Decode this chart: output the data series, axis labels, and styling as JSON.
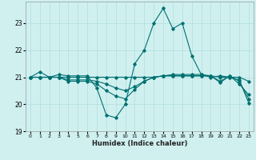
{
  "title": "",
  "xlabel": "Humidex (Indice chaleur)",
  "ylabel": "",
  "background_color": "#d0f0f0",
  "grid_color": "#b0dede",
  "line_color": "#007070",
  "ylim": [
    19,
    23.8
  ],
  "xlim": [
    -0.5,
    23.5
  ],
  "yticks": [
    19,
    20,
    21,
    22,
    23
  ],
  "xticks": [
    0,
    1,
    2,
    3,
    4,
    5,
    6,
    7,
    8,
    9,
    10,
    11,
    12,
    13,
    14,
    15,
    16,
    17,
    18,
    19,
    20,
    21,
    22,
    23
  ],
  "lines": [
    {
      "x": [
        0,
        1,
        2,
        3,
        4,
        5,
        6,
        7,
        8,
        9,
        10,
        11,
        12,
        13,
        14,
        15,
        16,
        17,
        18,
        19,
        20,
        21,
        22,
        23
      ],
      "y": [
        21.0,
        21.2,
        21.0,
        21.1,
        21.05,
        21.05,
        21.05,
        20.6,
        19.6,
        19.5,
        20.0,
        21.5,
        22.0,
        23.0,
        23.55,
        22.8,
        23.0,
        21.8,
        21.1,
        21.0,
        21.05,
        21.0,
        20.9,
        20.05
      ]
    },
    {
      "x": [
        0,
        1,
        2,
        3,
        4,
        5,
        6,
        7,
        8,
        9,
        10,
        11,
        12,
        13,
        14,
        15,
        16,
        17,
        18,
        19,
        20,
        21,
        22,
        23
      ],
      "y": [
        21.0,
        21.0,
        21.0,
        21.0,
        20.85,
        20.85,
        20.85,
        20.75,
        20.5,
        20.3,
        20.2,
        20.55,
        20.85,
        21.0,
        21.05,
        21.05,
        21.05,
        21.05,
        21.05,
        21.05,
        20.8,
        21.05,
        20.85,
        20.2
      ]
    },
    {
      "x": [
        0,
        1,
        2,
        3,
        4,
        5,
        6,
        7,
        8,
        9,
        10,
        11,
        12,
        13,
        14,
        15,
        16,
        17,
        18,
        19,
        20,
        21,
        22,
        23
      ],
      "y": [
        21.0,
        21.0,
        21.0,
        21.0,
        20.9,
        20.9,
        20.9,
        20.85,
        20.75,
        20.6,
        20.5,
        20.65,
        20.85,
        21.0,
        21.05,
        21.05,
        21.05,
        21.05,
        21.05,
        21.05,
        20.85,
        21.05,
        20.75,
        20.35
      ]
    },
    {
      "x": [
        0,
        1,
        2,
        3,
        4,
        5,
        6,
        7,
        8,
        9,
        10,
        11,
        12,
        13,
        14,
        15,
        16,
        17,
        18,
        19,
        20,
        21,
        22,
        23
      ],
      "y": [
        21.0,
        21.0,
        21.0,
        21.0,
        21.0,
        21.0,
        21.0,
        21.0,
        21.0,
        21.0,
        21.0,
        21.0,
        21.0,
        21.0,
        21.05,
        21.1,
        21.1,
        21.1,
        21.1,
        21.05,
        21.0,
        21.0,
        21.0,
        20.85
      ]
    }
  ]
}
